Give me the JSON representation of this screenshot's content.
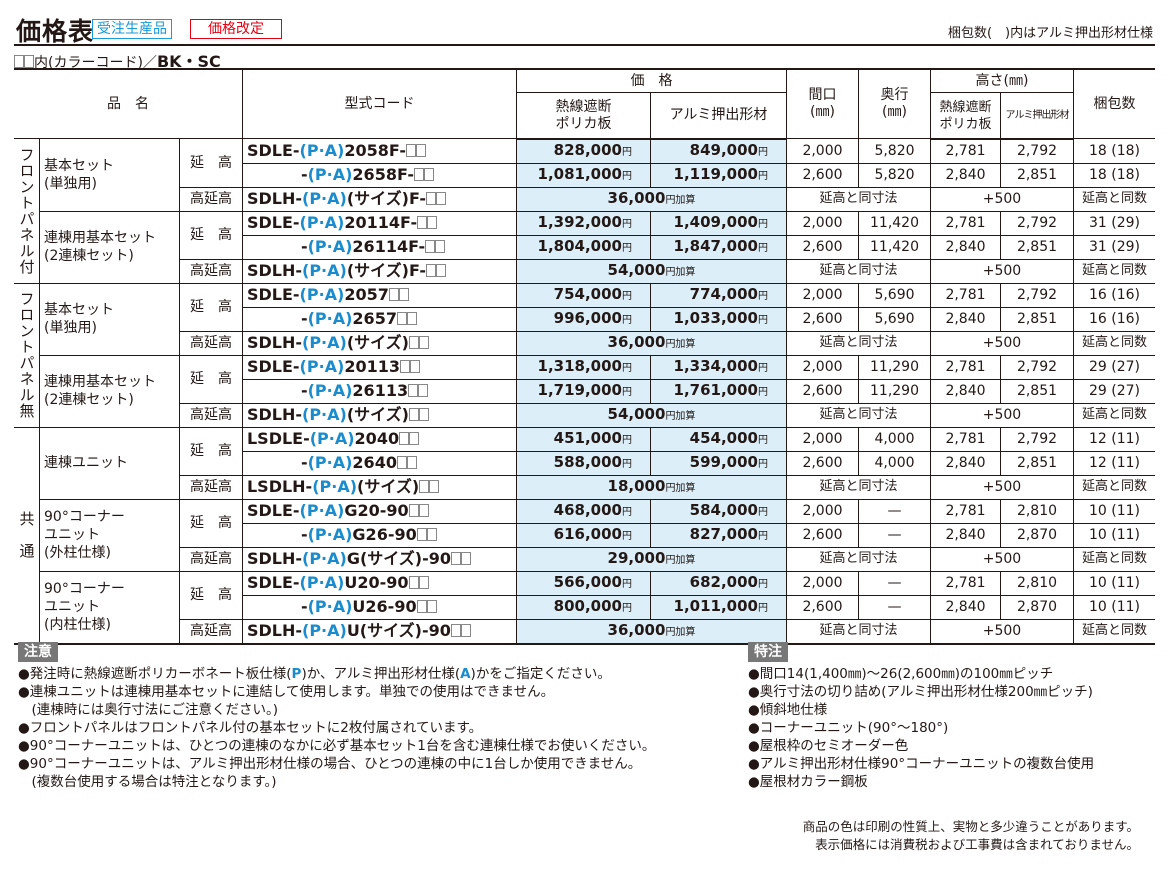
{
  "header": {
    "title": "価格表",
    "badge_order": "受注生産品",
    "badge_revised": "価格改定",
    "top_note": "梱包数(　)内はアルミ押出形材仕様",
    "color_note_prefix": "内(カラーコード)／",
    "color_codes": "BK・SC"
  },
  "colors": {
    "accent_blue": "#1a8ccd",
    "badge_red": "#e60012",
    "price_bg": "#dceef8"
  },
  "table": {
    "headers": {
      "name": "品　名",
      "code": "型式コード",
      "price": "価　格",
      "price_poly": "熱線遮断\nポリカ板",
      "price_alu": "アルミ押出形材",
      "width": "間口\n(㎜)",
      "depth": "奥行\n(㎜)",
      "height": "高さ(㎜)",
      "height_poly": "熱線遮断\nポリカ板",
      "height_alu": "アルミ押出形材",
      "count": "梱包数"
    },
    "sub_labels": {
      "main": "延　高",
      "high": "高延高"
    },
    "yen": "円",
    "add_suffix": "円加算",
    "groups": [
      {
        "label": "フロントパネル付",
        "items": [
          {
            "name": "基本セット\n(単独用)",
            "rows": [
              {
                "pre": "SDLE-",
                "pa": "(P·A)",
                "post": "2058F-",
                "poly": "828,000",
                "alu": "849,000",
                "width": "2,000",
                "depth": "5,820",
                "h_poly": "2,781",
                "h_alu": "2,792",
                "count": "18 (18)"
              },
              {
                "pre": "-",
                "pa": "(P·A)",
                "post": "2658F-",
                "poly": "1,081,000",
                "alu": "1,119,000",
                "width": "2,600",
                "depth": "5,820",
                "h_poly": "2,840",
                "h_alu": "2,851",
                "count": "18 (18)"
              }
            ],
            "high": {
              "pre": "SDLH-",
              "pa": "(P·A)",
              "post": "(サイズ)F-",
              "add": "36,000",
              "dims": "延高と同寸法",
              "height": "+500",
              "count": "延高と同数"
            }
          },
          {
            "name": "連棟用基本セット\n(2連棟セット)",
            "rows": [
              {
                "pre": "SDLE-",
                "pa": "(P·A)",
                "post": "20114F-",
                "poly": "1,392,000",
                "alu": "1,409,000",
                "width": "2,000",
                "depth": "11,420",
                "h_poly": "2,781",
                "h_alu": "2,792",
                "count": "31 (29)"
              },
              {
                "pre": "-",
                "pa": "(P·A)",
                "post": "26114F-",
                "poly": "1,804,000",
                "alu": "1,847,000",
                "width": "2,600",
                "depth": "11,420",
                "h_poly": "2,840",
                "h_alu": "2,851",
                "count": "31 (29)"
              }
            ],
            "high": {
              "pre": "SDLH-",
              "pa": "(P·A)",
              "post": "(サイズ)F-",
              "add": "54,000",
              "dims": "延高と同寸法",
              "height": "+500",
              "count": "延高と同数"
            }
          }
        ]
      },
      {
        "label": "フロントパネル無",
        "items": [
          {
            "name": "基本セット\n(単独用)",
            "rows": [
              {
                "pre": "SDLE-",
                "pa": "(P·A)",
                "post": "2057",
                "poly": "754,000",
                "alu": "774,000",
                "width": "2,000",
                "depth": "5,690",
                "h_poly": "2,781",
                "h_alu": "2,792",
                "count": "16 (16)"
              },
              {
                "pre": "-",
                "pa": "(P·A)",
                "post": "2657",
                "poly": "996,000",
                "alu": "1,033,000",
                "width": "2,600",
                "depth": "5,690",
                "h_poly": "2,840",
                "h_alu": "2,851",
                "count": "16 (16)"
              }
            ],
            "high": {
              "pre": "SDLH-",
              "pa": "(P·A)",
              "post": "(サイズ)",
              "add": "36,000",
              "dims": "延高と同寸法",
              "height": "+500",
              "count": "延高と同数"
            }
          },
          {
            "name": "連棟用基本セット\n(2連棟セット)",
            "rows": [
              {
                "pre": "SDLE-",
                "pa": "(P·A)",
                "post": "20113",
                "poly": "1,318,000",
                "alu": "1,334,000",
                "width": "2,000",
                "depth": "11,290",
                "h_poly": "2,781",
                "h_alu": "2,792",
                "count": "29 (27)"
              },
              {
                "pre": "-",
                "pa": "(P·A)",
                "post": "26113",
                "poly": "1,719,000",
                "alu": "1,761,000",
                "width": "2,600",
                "depth": "11,290",
                "h_poly": "2,840",
                "h_alu": "2,851",
                "count": "29 (27)"
              }
            ],
            "high": {
              "pre": "SDLH-",
              "pa": "(P·A)",
              "post": "(サイズ)",
              "add": "54,000",
              "dims": "延高と同寸法",
              "height": "+500",
              "count": "延高と同数"
            }
          }
        ]
      },
      {
        "label": "共　通",
        "items": [
          {
            "name": "連棟ユニット",
            "rows": [
              {
                "pre": "LSDLE-",
                "pa": "(P·A)",
                "post": "2040",
                "poly": "451,000",
                "alu": "454,000",
                "width": "2,000",
                "depth": "4,000",
                "h_poly": "2,781",
                "h_alu": "2,792",
                "count": "12 (11)"
              },
              {
                "pre": "-",
                "pa": "(P·A)",
                "post": "2640",
                "poly": "588,000",
                "alu": "599,000",
                "width": "2,600",
                "depth": "4,000",
                "h_poly": "2,840",
                "h_alu": "2,851",
                "count": "12 (11)"
              }
            ],
            "high": {
              "pre": "LSDLH-",
              "pa": "(P·A)",
              "post": "(サイズ)",
              "add": "18,000",
              "dims": "延高と同寸法",
              "height": "+500",
              "count": "延高と同数"
            }
          },
          {
            "name": "90°コーナー\nユニット\n(外柱仕様)",
            "rows": [
              {
                "pre": "SDLE-",
                "pa": "(P·A)",
                "post": "G20-90",
                "poly": "468,000",
                "alu": "584,000",
                "width": "2,000",
                "depth": "—",
                "h_poly": "2,781",
                "h_alu": "2,810",
                "count": "10 (11)"
              },
              {
                "pre": "-",
                "pa": "(P·A)",
                "post": "G26-90",
                "poly": "616,000",
                "alu": "827,000",
                "width": "2,600",
                "depth": "—",
                "h_poly": "2,840",
                "h_alu": "2,870",
                "count": "10 (11)"
              }
            ],
            "high": {
              "pre": "SDLH-",
              "pa": "(P·A)",
              "post": "G(サイズ)-90",
              "add": "29,000",
              "dims": "延高と同寸法",
              "height": "+500",
              "count": "延高と同数"
            }
          },
          {
            "name": "90°コーナー\nユニット\n(内柱仕様)",
            "rows": [
              {
                "pre": "SDLE-",
                "pa": "(P·A)",
                "post": "U20-90",
                "poly": "566,000",
                "alu": "682,000",
                "width": "2,000",
                "depth": "—",
                "h_poly": "2,781",
                "h_alu": "2,810",
                "count": "10 (11)"
              },
              {
                "pre": "-",
                "pa": "(P·A)",
                "post": "U26-90",
                "poly": "800,000",
                "alu": "1,011,000",
                "width": "2,600",
                "depth": "—",
                "h_poly": "2,840",
                "h_alu": "2,870",
                "count": "10 (11)"
              }
            ],
            "high": {
              "pre": "SDLH-",
              "pa": "(P·A)",
              "post": "U(サイズ)-90",
              "add": "36,000",
              "dims": "延高と同寸法",
              "height": "+500",
              "count": "延高と同数"
            }
          }
        ]
      }
    ]
  },
  "notes": {
    "title": "注意",
    "items": [
      {
        "a": "●発注時に熱線遮断ポリカーボネート板仕様(",
        "b": "P",
        "c": ")か、アルミ押出形材仕様(",
        "d": "A",
        "e": ")かをご指定ください。"
      },
      {
        "a": "●連棟ユニットは連棟用基本セットに連結して使用します。単独での使用はできません。"
      },
      {
        "a": "　(連棟時には奥行寸法にご注意ください。)"
      },
      {
        "a": "●フロントパネルはフロントパネル付の基本セットに2枚付属されています。"
      },
      {
        "a": "●90°コーナーユニットは、ひとつの連棟のなかに必ず基本セット1台を含む連棟仕様でお使いください。"
      },
      {
        "a": "●90°コーナーユニットは、アルミ押出形材仕様の場合、ひとつの連棟の中に1台しか使用できません。"
      },
      {
        "a": "　(複数台使用する場合は特注となります。)"
      }
    ]
  },
  "special": {
    "title": "特注",
    "items": [
      "●間口14(1,400㎜)～26(2,600㎜)の100㎜ピッチ",
      "●奥行寸法の切り詰め(アルミ押出形材仕様200㎜ピッチ)",
      "●傾斜地仕様",
      "●コーナーユニット(90°～180°)",
      "●屋根枠のセミオーダー色",
      "●アルミ押出形材仕様90°コーナーユニットの複数台使用",
      "●屋根材カラー鋼板"
    ]
  },
  "footer": [
    "商品の色は印刷の性質上、実物と多少違うことがあります。",
    "表示価格には消費税および工事費は含まれておりません。"
  ]
}
